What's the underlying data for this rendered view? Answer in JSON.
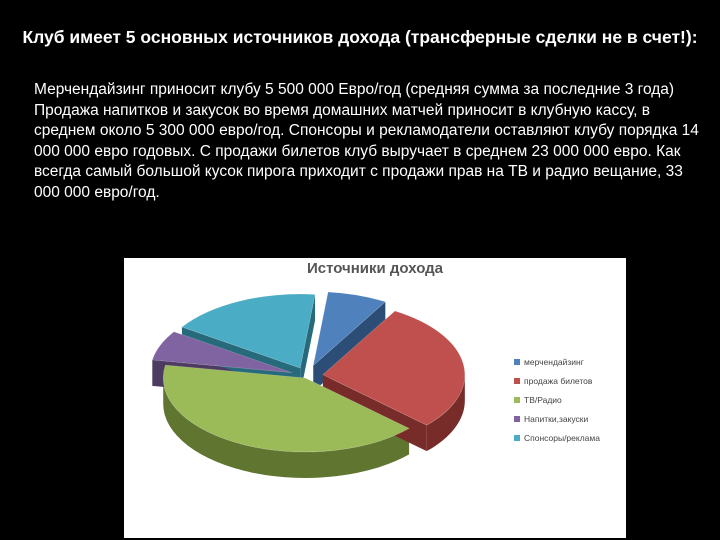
{
  "heading": "Клуб имеет 5 основных источников дохода (трансферные сделки не в счет!):",
  "paragraphs": [
    "Мерчендайзинг приносит клубу 5 500 000 Евро/год (средняя сумма за последние 3 года)",
    "Продажа напитков и закусок во время домашних матчей приносит в клубную кассу, в среднем около 5 300 000 евро/год. Спонсоры и рекламодатели оставляют клубу порядка 14 000 000 евро годовых. С продажи билетов клуб выручает в среднем 23 000 000 евро. Как всегда самый большой кусок пирога приходит с продажи прав на ТВ и радио вещание, 33 000 000 евро/год."
  ],
  "chart_data": {
    "type": "pie",
    "style": "3d-exploded",
    "title": "Источники дохода",
    "legend_position": "right",
    "categories": [
      "мерчендайзинг",
      "продажа билетов",
      "ТВ/Радио",
      "Напитки,закуски",
      "Спонсоры/реклама"
    ],
    "values": [
      5500000,
      23000000,
      33000000,
      5300000,
      14000000
    ],
    "colors": [
      "#4f81bd",
      "#c0504d",
      "#9bbb59",
      "#8064a2",
      "#4bacc6"
    ],
    "side_colors": [
      "#2c4d75",
      "#772c2a",
      "#5f7530",
      "#4d3b62",
      "#276a7c"
    ]
  }
}
